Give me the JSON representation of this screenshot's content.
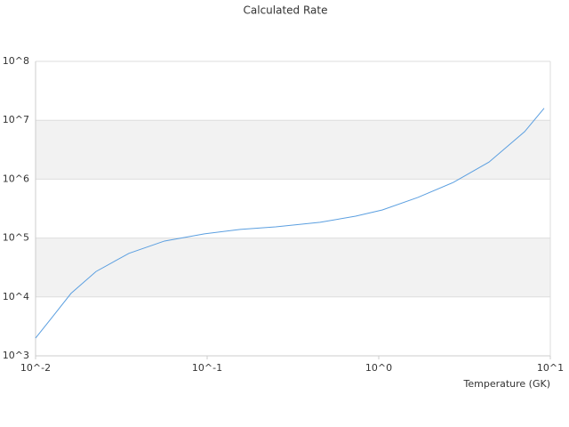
{
  "chart_data": {
    "type": "line",
    "title": "Calculated Rate",
    "x_label": "Temperature (GK)",
    "log_x": true,
    "log_y": true,
    "grid": true,
    "band_color": "#f2f2f2",
    "xlim": [
      0.01,
      10
    ],
    "ylim": [
      1000,
      100000000
    ],
    "xticks": [
      {
        "value": 0.01,
        "label": "10^-2"
      },
      {
        "value": 0.1,
        "label": "10^-1"
      },
      {
        "value": 1,
        "label": "10^0"
      },
      {
        "value": 10,
        "label": "10^1"
      }
    ],
    "yticks": [
      {
        "value": 1000,
        "label": "10^3"
      },
      {
        "value": 10000,
        "label": "10^4"
      },
      {
        "value": 100000,
        "label": "10^5"
      },
      {
        "value": 1000000,
        "label": "10^6"
      },
      {
        "value": 10000000,
        "label": "10^7"
      },
      {
        "value": 100000000,
        "label": "10^8"
      }
    ],
    "x": [
      0.01,
      0.0127,
      0.0161,
      0.0225,
      0.035,
      0.0564,
      0.0964,
      0.156,
      0.251,
      0.455,
      0.733,
      1.05,
      1.69,
      2.72,
      4.39,
      7.08,
      9.2
    ],
    "series": [
      {
        "color": "#5b9fe0",
        "values": [
          2000,
          4800,
          11500,
          27000,
          55000,
          89000,
          118000,
          140000,
          155000,
          185000,
          235000,
          300000,
          490000,
          880000,
          1950000,
          6400000,
          16000000
        ]
      }
    ]
  }
}
